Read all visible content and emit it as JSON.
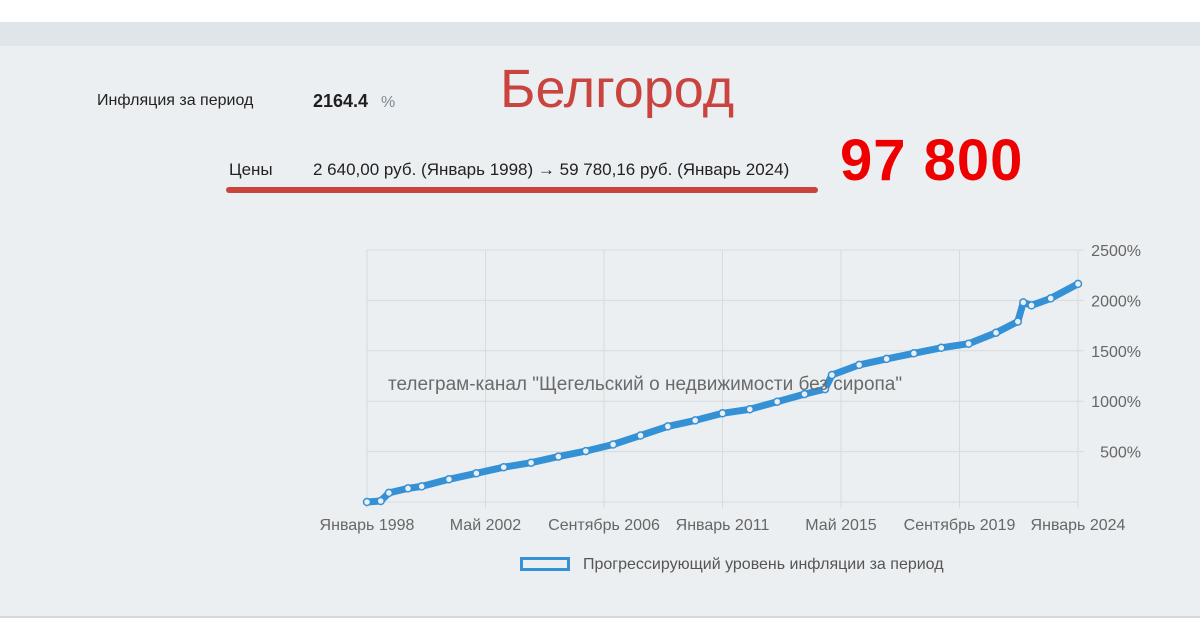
{
  "header": {
    "inflation_label": "Инфляция за период",
    "inflation_value": "2164.4",
    "inflation_unit": "%",
    "prices_label": "Цены",
    "prices_value": "2 640,00 руб. (Январь 1998) → 59 780,16 руб. (Январь 2024)",
    "city": "Белгород",
    "price_overlay": "97 800"
  },
  "watermark": "телеграм-канал \"Щегельский о недвижимости без сиропа\"",
  "colors": {
    "series": "#3591d6",
    "accent_red": "#c9443e",
    "overlay_red": "#ee0000",
    "panel_bg": "#ebeff1"
  },
  "chart_data": {
    "type": "line",
    "title": "",
    "xlabel": "",
    "ylabel": "",
    "x_tick_labels": [
      "Январь 1998",
      "Май 2002",
      "Сентябрь 2006",
      "Январь 2011",
      "Май 2015",
      "Сентябрь 2019",
      "Январь 2024"
    ],
    "y_ticks": [
      500,
      1000,
      1500,
      2000,
      2500
    ],
    "y_tick_labels": [
      "500%",
      "1000%",
      "1500%",
      "2000%",
      "2500%"
    ],
    "y_axis_position": "right",
    "ylim": [
      0,
      2500
    ],
    "xlim": [
      1998.0,
      2024.0
    ],
    "grid": true,
    "legend_position": "bottom",
    "series": [
      {
        "name": "Прогрессирующий уровень инфляции за период",
        "points": [
          [
            1998.0,
            0
          ],
          [
            1998.5,
            10
          ],
          [
            1998.8,
            90
          ],
          [
            1999.5,
            135
          ],
          [
            2000.0,
            155
          ],
          [
            2001.0,
            225
          ],
          [
            2002.0,
            285
          ],
          [
            2003.0,
            345
          ],
          [
            2004.0,
            390
          ],
          [
            2005.0,
            450
          ],
          [
            2006.0,
            505
          ],
          [
            2007.0,
            570
          ],
          [
            2008.0,
            660
          ],
          [
            2009.0,
            750
          ],
          [
            2010.0,
            810
          ],
          [
            2011.0,
            880
          ],
          [
            2012.0,
            920
          ],
          [
            2013.0,
            995
          ],
          [
            2014.0,
            1070
          ],
          [
            2014.75,
            1120
          ],
          [
            2015.0,
            1260
          ],
          [
            2016.0,
            1360
          ],
          [
            2017.0,
            1420
          ],
          [
            2018.0,
            1475
          ],
          [
            2019.0,
            1530
          ],
          [
            2020.0,
            1570
          ],
          [
            2021.0,
            1680
          ],
          [
            2021.8,
            1790
          ],
          [
            2022.0,
            1980
          ],
          [
            2022.3,
            1950
          ],
          [
            2023.0,
            2020
          ],
          [
            2024.0,
            2164
          ]
        ]
      }
    ]
  }
}
